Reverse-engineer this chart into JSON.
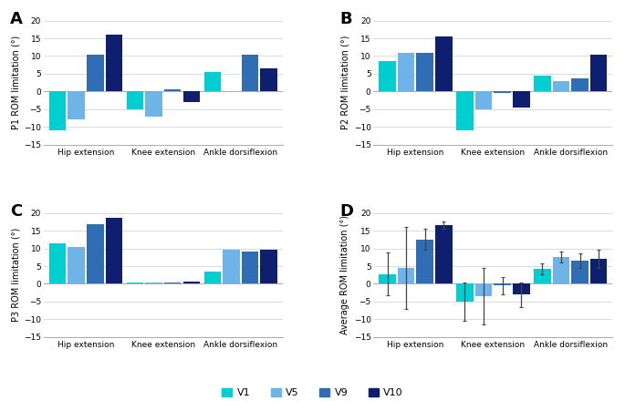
{
  "panels": {
    "A": {
      "title": "A",
      "ylabel": "P1 ROM limitation (°)",
      "ylim": [
        -15,
        20
      ],
      "yticks": [
        -15,
        -10,
        -5,
        0,
        5,
        10,
        15,
        20
      ],
      "data": {
        "Hip extension": [
          -11,
          -8,
          10.5,
          16
        ],
        "Knee extension": [
          -5,
          -7,
          0.5,
          -3
        ],
        "Ankle dorsiflexion": [
          5.5,
          0,
          10.5,
          6.5
        ]
      }
    },
    "B": {
      "title": "B",
      "ylabel": "P2 ROM limitation (°)",
      "ylim": [
        -15,
        20
      ],
      "yticks": [
        -15,
        -10,
        -5,
        0,
        5,
        10,
        15,
        20
      ],
      "data": {
        "Hip extension": [
          8.5,
          11,
          11,
          15.5
        ],
        "Knee extension": [
          -11,
          -5,
          -0.5,
          -4.5
        ],
        "Ankle dorsiflexion": [
          4.5,
          2.8,
          3.8,
          10.5
        ]
      }
    },
    "C": {
      "title": "C",
      "ylabel": "P3 ROM limitation (°)",
      "ylim": [
        -15,
        20
      ],
      "yticks": [
        -15,
        -10,
        -5,
        0,
        5,
        10,
        15,
        20
      ],
      "data": {
        "Hip extension": [
          11.5,
          10.5,
          16.8,
          18.5
        ],
        "Knee extension": [
          0.5,
          0.5,
          0.5,
          0.7
        ],
        "Ankle dorsiflexion": [
          3.5,
          9.5,
          9,
          9.5
        ]
      }
    },
    "D": {
      "title": "D",
      "ylabel": "Average ROM limitation (°)",
      "ylim": [
        -15,
        20
      ],
      "yticks": [
        -15,
        -10,
        -5,
        0,
        5,
        10,
        15,
        20
      ],
      "data": {
        "Hip extension": [
          2.8,
          4.5,
          12.5,
          16.5
        ],
        "Knee extension": [
          -5.0,
          -3.5,
          -0.5,
          -3.0
        ],
        "Ankle dorsiflexion": [
          4.2,
          7.5,
          6.5,
          7.0
        ]
      },
      "errors": {
        "Hip extension": [
          6.0,
          11.5,
          3.0,
          1.0
        ],
        "Knee extension": [
          5.5,
          8.0,
          2.5,
          3.5
        ],
        "Ankle dorsiflexion": [
          1.5,
          1.5,
          2.0,
          2.5
        ]
      }
    }
  },
  "colors": [
    "#00CED1",
    "#6EB4E8",
    "#2F6DB5",
    "#0D1F6E"
  ],
  "legend_labels": [
    "V1",
    "V5",
    "V9",
    "V10"
  ],
  "categories": [
    "Hip extension",
    "Knee extension",
    "Ankle dorsiflexion"
  ],
  "bar_width": 0.17,
  "group_positions": [
    0.28,
    0.98,
    1.68
  ]
}
